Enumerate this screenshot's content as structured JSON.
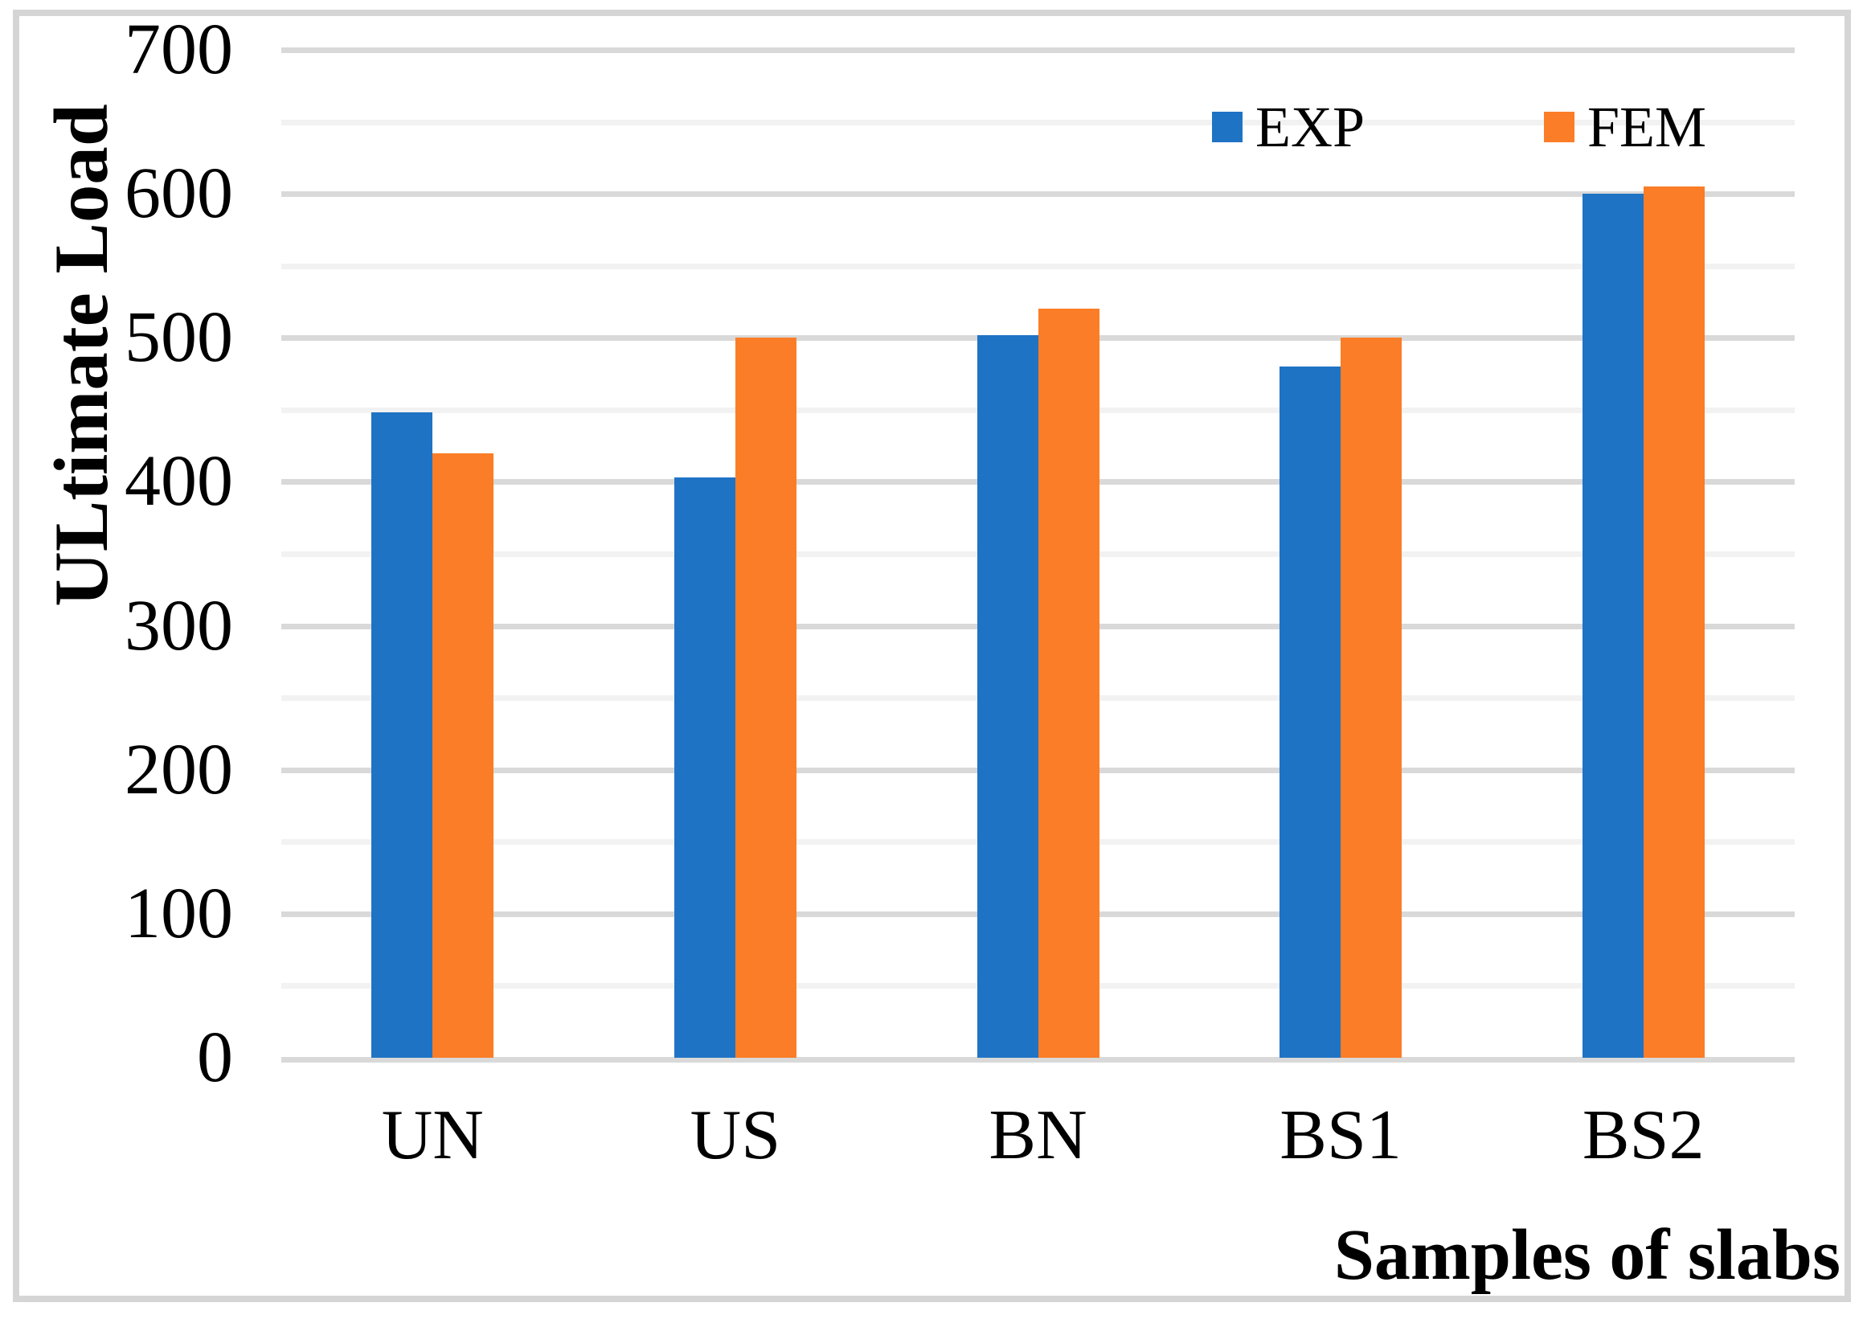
{
  "chart_data": {
    "type": "bar",
    "title": "",
    "categories": [
      "UN",
      "US",
      "BN",
      "BS1",
      "BS2"
    ],
    "series": [
      {
        "name": "EXP",
        "color": "#1f73c5",
        "values": [
          448,
          403,
          502,
          480,
          600
        ]
      },
      {
        "name": "FEM",
        "color": "#fb7d27",
        "values": [
          420,
          500,
          520,
          500,
          605
        ]
      }
    ],
    "xlabel": "Samples of slabs",
    "ylabel": "ULtimate Load",
    "ylim": [
      0,
      700
    ],
    "ytick_step": 100,
    "ytick_labels": [
      "0",
      "100",
      "200",
      "300",
      "400",
      "500",
      "600",
      "700"
    ],
    "minor_gridline_step": 50,
    "grid": true,
    "major_gridline_color": "#d9d9d9",
    "minor_gridline_color": "#f2f2f2",
    "baseline_color": "#d9d9d9",
    "frame_border_color": "#d5d5d5",
    "legend_position": "top-right"
  }
}
